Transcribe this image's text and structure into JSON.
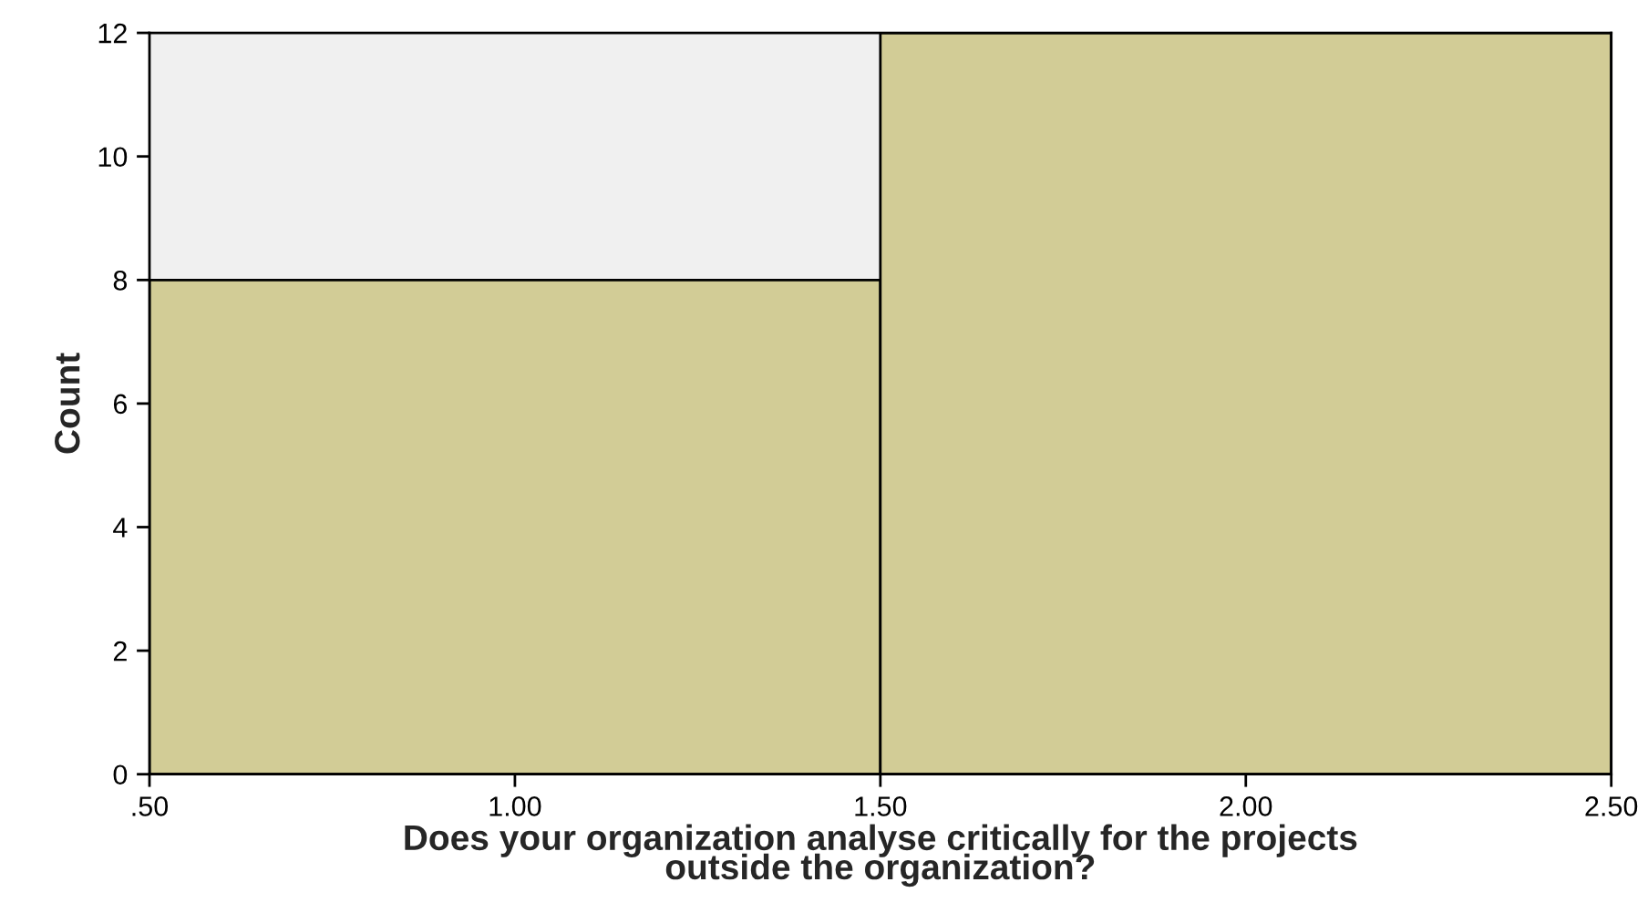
{
  "chart_data": {
    "type": "histogram",
    "xlabel": "Does your organization analyse critically for the projects\noutside the organization?",
    "ylabel": "Count",
    "bins": [
      0.5,
      1.5,
      2.5
    ],
    "values": [
      8,
      12
    ],
    "color": "#d2cc96",
    "xlim": [
      0.5,
      2.5
    ],
    "xticks": [
      {
        "value": 0.5,
        "label": ".50"
      },
      {
        "value": 1.0,
        "label": "1.00"
      },
      {
        "value": 1.5,
        "label": "1.50"
      },
      {
        "value": 2.0,
        "label": "2.00"
      },
      {
        "value": 2.5,
        "label": "2.50"
      }
    ],
    "ylim": [
      0,
      12
    ],
    "yticks": [
      0,
      2,
      4,
      6,
      8,
      10,
      12
    ],
    "grid": false,
    "legend": false
  }
}
